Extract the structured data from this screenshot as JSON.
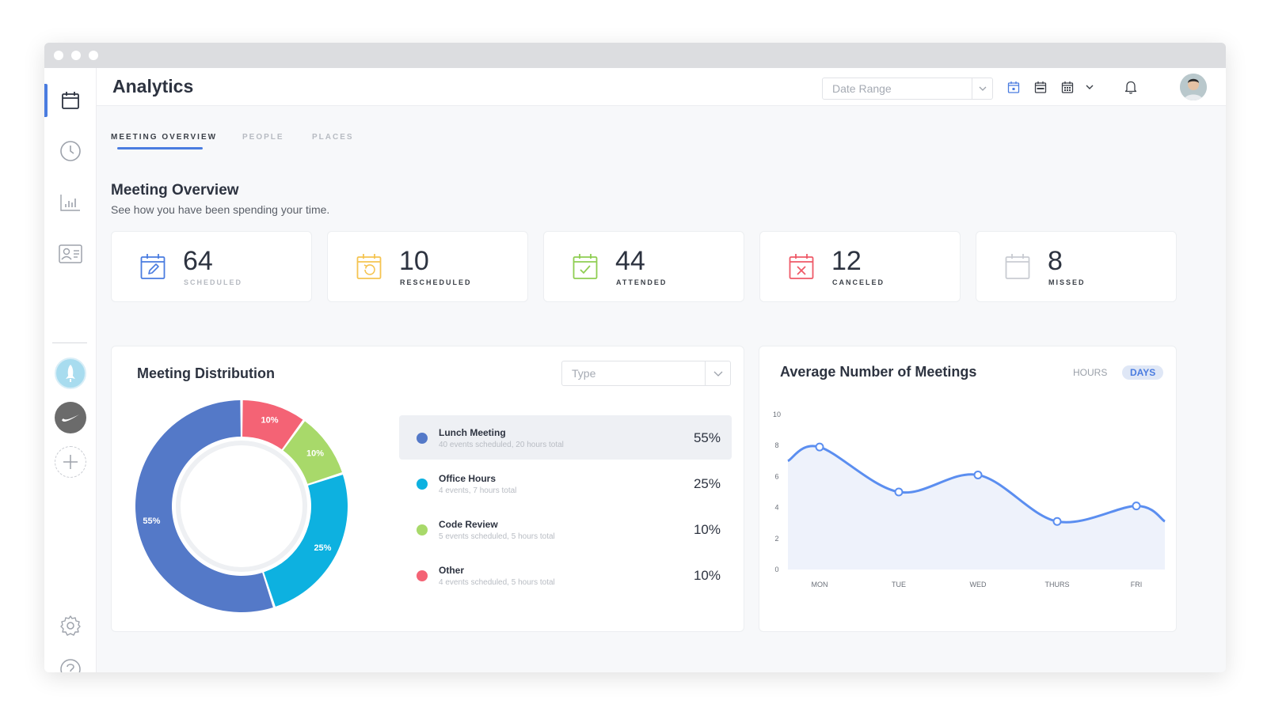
{
  "page": {
    "title": "Analytics"
  },
  "toolbar": {
    "date_range_placeholder": "Date Range",
    "icons": [
      "calendar-day-icon",
      "calendar-week-icon",
      "calendar-month-icon",
      "bell-icon"
    ]
  },
  "sidebar": {
    "items": [
      {
        "name": "calendar",
        "active": true
      },
      {
        "name": "clock",
        "active": false
      },
      {
        "name": "bar-chart",
        "active": false
      },
      {
        "name": "contact-card",
        "active": false
      }
    ],
    "orgs": [
      "rocket-org",
      "swoosh-org",
      "add-org"
    ],
    "bottom": [
      "settings",
      "help"
    ]
  },
  "tabs": [
    {
      "label": "MEETING OVERVIEW",
      "active": true
    },
    {
      "label": "PEOPLE",
      "active": false
    },
    {
      "label": "PLACES",
      "active": false
    }
  ],
  "overview": {
    "title": "Meeting Overview",
    "subtitle": "See how you have been spending your time."
  },
  "stats": [
    {
      "value": "64",
      "label": "SCHEDULED",
      "color": "#4a7ce0"
    },
    {
      "value": "10",
      "label": "RESCHEDULED",
      "color": "#f5c451"
    },
    {
      "value": "44",
      "label": "ATTENDED",
      "color": "#8fce52"
    },
    {
      "value": "12",
      "label": "CANCELED",
      "color": "#ef5a68"
    },
    {
      "value": "8",
      "label": "MISSED",
      "color": "#c9ccd2"
    }
  ],
  "distribution": {
    "title": "Meeting Distribution",
    "type_placeholder": "Type",
    "items": [
      {
        "name": "Lunch Meeting",
        "desc": "40 events scheduled, 20 hours total",
        "pct": "55%",
        "value": 55,
        "color": "#5479c8"
      },
      {
        "name": "Office Hours",
        "desc": "4 events, 7 hours total",
        "pct": "25%",
        "value": 25,
        "color": "#0db1e0"
      },
      {
        "name": "Code Review",
        "desc": "5 events scheduled, 5 hours total",
        "pct": "10%",
        "value": 10,
        "color": "#a8d96a"
      },
      {
        "name": "Other",
        "desc": "4 events scheduled, 5 hours total",
        "pct": "10%",
        "value": 10,
        "color": "#f46375"
      }
    ]
  },
  "average": {
    "title": "Average Number of Meetings",
    "toggle_hours": "HOURS",
    "toggle_days": "DAYS"
  },
  "chart_data": {
    "type": "area",
    "title": "Average Number of Meetings",
    "categories": [
      "MON",
      "TUE",
      "WED",
      "THURS",
      "FRI"
    ],
    "values": [
      7.9,
      5.0,
      6.1,
      3.1,
      4.1
    ],
    "y_ticks": [
      0,
      2,
      4,
      6,
      8,
      10
    ],
    "ylim": [
      0,
      10
    ],
    "line_color": "#5b8ef0",
    "fill_color": "#eef2fb"
  }
}
